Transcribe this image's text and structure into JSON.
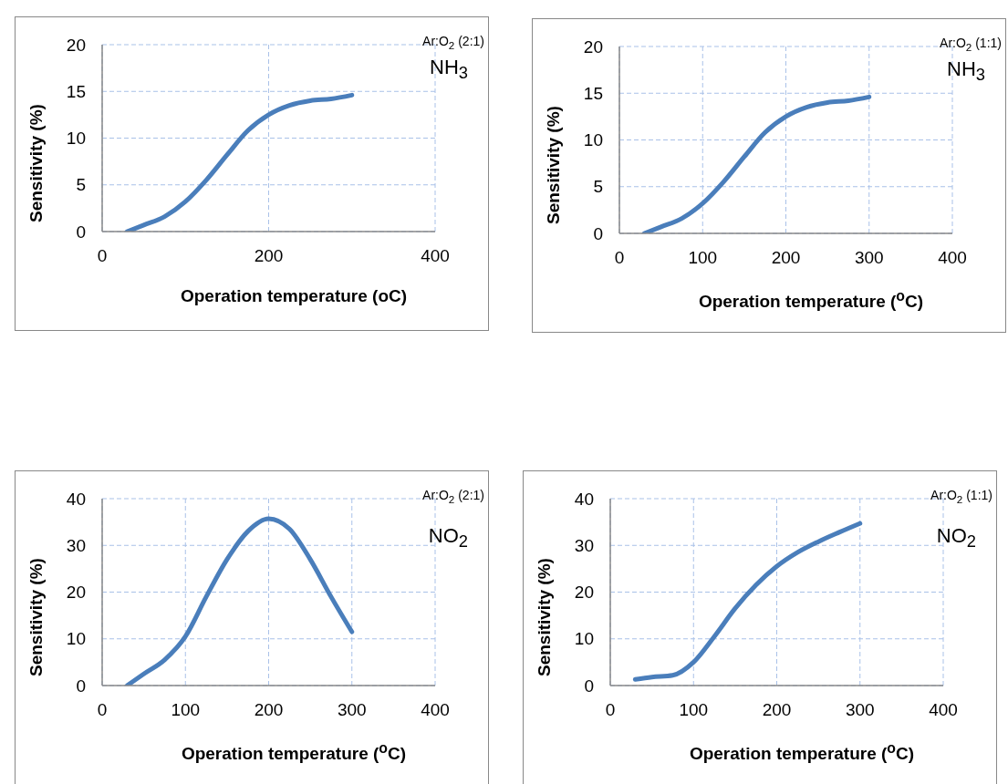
{
  "chart_data": [
    {
      "type": "line",
      "xlabel": "Operation temperature (oC)",
      "ylabel": "Sensitivity (%)",
      "annotations": [
        "Ar:O$_{2}$ (2:1)",
        "NH$_{3}$"
      ],
      "xlim": [
        0,
        400
      ],
      "xticks": [
        0,
        200,
        400
      ],
      "ylim": [
        0,
        20
      ],
      "yticks": [
        0,
        5,
        10,
        15,
        20
      ],
      "grid": true,
      "marker": "none",
      "line_style": "solid",
      "series": [
        {
          "color": "#4a7ebb",
          "x": [
            30,
            50,
            75,
            100,
            125,
            150,
            175,
            200,
            225,
            250,
            275,
            300
          ],
          "values": [
            0,
            0.7,
            1.6,
            3.2,
            5.5,
            8.2,
            10.8,
            12.5,
            13.5,
            14,
            14.2,
            14.6
          ]
        }
      ]
    },
    {
      "type": "line",
      "xlabel": "Operation temperature ($^{o}$C)",
      "ylabel": "Sensitivity (%)",
      "annotations": [
        "Ar:O$_{2}$ (1:1)",
        "NH$_{3}$"
      ],
      "xlim": [
        0,
        400
      ],
      "xticks": [
        0,
        100,
        200,
        300,
        400
      ],
      "ylim": [
        0,
        20
      ],
      "yticks": [
        0,
        5,
        10,
        15,
        20
      ],
      "grid": true,
      "marker": "none",
      "line_style": "solid",
      "series": [
        {
          "color": "#4a7ebb",
          "x": [
            30,
            50,
            75,
            100,
            125,
            150,
            175,
            200,
            225,
            250,
            275,
            300
          ],
          "values": [
            0,
            0.7,
            1.6,
            3.2,
            5.5,
            8.2,
            10.8,
            12.5,
            13.5,
            14,
            14.2,
            14.6
          ]
        }
      ]
    },
    {
      "type": "line",
      "xlabel": "Operation temperature ($^{o}$C)",
      "ylabel": "Sensitivity (%)",
      "annotations": [
        "Ar:O$_{2}$ (2:1)",
        "NO$_{2}$"
      ],
      "xlim": [
        0,
        400
      ],
      "xticks": [
        0,
        100,
        200,
        300,
        400
      ],
      "ylim": [
        0,
        40
      ],
      "yticks": [
        0,
        10,
        20,
        30,
        40
      ],
      "grid": true,
      "marker": "none",
      "line_style": "solid",
      "series": [
        {
          "color": "#4a7ebb",
          "x": [
            30,
            50,
            75,
            100,
            125,
            150,
            175,
            200,
            225,
            250,
            275,
            300
          ],
          "values": [
            0,
            2.5,
            5.5,
            10.5,
            19,
            27,
            33,
            35.7,
            33.5,
            27,
            19,
            11.5
          ]
        }
      ]
    },
    {
      "type": "line",
      "xlabel": "Operation temperature ($^{o}$C)",
      "ylabel": "Sensitivity (%)",
      "annotations": [
        "Ar:O$_{2}$ (1:1)",
        "NO$_{2}$"
      ],
      "xlim": [
        0,
        400
      ],
      "xticks": [
        0,
        100,
        200,
        300,
        400
      ],
      "ylim": [
        0,
        40
      ],
      "yticks": [
        0,
        10,
        20,
        30,
        40
      ],
      "grid": true,
      "marker": "none",
      "line_style": "solid",
      "series": [
        {
          "color": "#4a7ebb",
          "x": [
            30,
            50,
            75,
            100,
            125,
            150,
            175,
            200,
            225,
            250,
            275,
            300
          ],
          "values": [
            1.3,
            1.8,
            2.2,
            5,
            10.5,
            16.5,
            21.5,
            25.5,
            28.5,
            30.8,
            32.8,
            34.7
          ]
        }
      ]
    }
  ]
}
